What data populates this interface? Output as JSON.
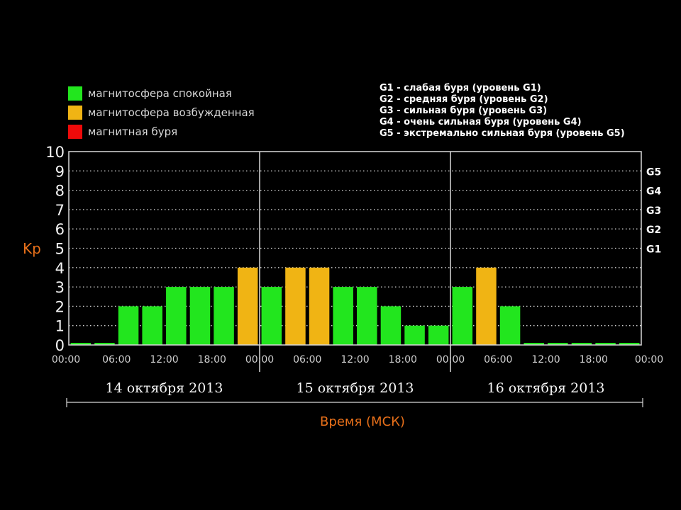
{
  "legend": {
    "items": [
      {
        "label": "магнитосфера спокойная",
        "color": "#22e61e"
      },
      {
        "label": "магнитосфера возбужденная",
        "color": "#f0b414"
      },
      {
        "label": "магнитная буря",
        "color": "#ee0a0a"
      }
    ],
    "storm_levels": [
      "G1 - слабая буря (уровень G1)",
      "G2 - средняя буря (уровень G2)",
      "G3 - сильная буря (уровень G3)",
      "G4 - очень сильная буря (уровень G4)",
      "G5 - экстремально сильная буря (уровень G5)"
    ]
  },
  "chart_data": {
    "type": "bar",
    "ylabel": "Kp",
    "xlabel": "Время (МСК)",
    "ylim": [
      0,
      10
    ],
    "yticks": [
      0,
      1,
      2,
      3,
      4,
      5,
      6,
      7,
      8,
      9,
      10
    ],
    "g_levels": [
      {
        "label": "G1",
        "kp": 5
      },
      {
        "label": "G2",
        "kp": 6
      },
      {
        "label": "G3",
        "kp": 7
      },
      {
        "label": "G4",
        "kp": 8
      },
      {
        "label": "G5",
        "kp": 9
      }
    ],
    "days": [
      "14 октября 2013",
      "15 октября 2013",
      "16 октября 2013"
    ],
    "x_tick_labels": [
      "00:00",
      "06:00",
      "12:00",
      "18:00",
      "00:00",
      "06:00",
      "12:00",
      "18:00",
      "00:00",
      "06:00",
      "12:00",
      "18:00",
      "00:00"
    ],
    "intervals_per_day": 8,
    "values": [
      0,
      0,
      2,
      2,
      3,
      3,
      3,
      4,
      3,
      4,
      4,
      3,
      3,
      2,
      1,
      1,
      3,
      4,
      2,
      0,
      0,
      0,
      0,
      0
    ],
    "colors": {
      "quiet": "#22e61e",
      "active": "#f0b414",
      "storm": "#ee0a0a"
    },
    "axis_label_color": "#e8701a",
    "grid": true
  }
}
